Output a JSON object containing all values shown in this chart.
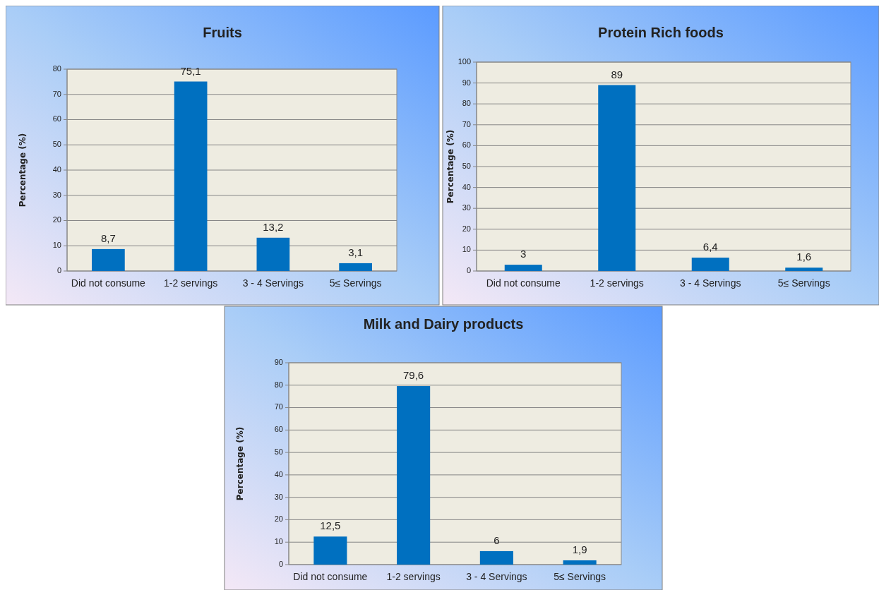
{
  "chart_data": [
    {
      "type": "bar",
      "title": "Fruits",
      "ylabel": "Percentage (%)",
      "categories": [
        "Did not consume",
        "1-2 servings",
        "3 - 4 Servings",
        "5≤ Servings"
      ],
      "values": [
        8.7,
        75.1,
        13.2,
        3.1
      ],
      "value_labels": [
        "8,7",
        "75,1",
        "13,2",
        "3,1"
      ],
      "color": "#0070c0",
      "ylim": [
        0,
        80
      ],
      "yticks": [
        0,
        10,
        20,
        30,
        40,
        50,
        60,
        70,
        80
      ],
      "grid": "y"
    },
    {
      "type": "bar",
      "title": "Protein Rich foods",
      "ylabel": "Percentage (%)",
      "categories": [
        "Did not consume",
        "1-2 servings",
        "3 - 4 Servings",
        "5≤ Servings"
      ],
      "values": [
        3,
        89,
        6.4,
        1.6
      ],
      "value_labels": [
        "3",
        "89",
        "6,4",
        "1,6"
      ],
      "color": "#0070c0",
      "ylim": [
        0,
        100
      ],
      "yticks": [
        0,
        10,
        20,
        30,
        40,
        50,
        60,
        70,
        80,
        90,
        100
      ],
      "grid": "y"
    },
    {
      "type": "bar",
      "title": "Milk and Dairy products",
      "ylabel": "Percentage (%)",
      "categories": [
        "Did not consume",
        "1-2 servings",
        "3 - 4 Servings",
        "5≤ Servings"
      ],
      "values": [
        12.5,
        79.6,
        6,
        1.9
      ],
      "value_labels": [
        "12,5",
        "79,6",
        "6",
        "1,9"
      ],
      "color": "#0070c0",
      "ylim": [
        0,
        90
      ],
      "yticks": [
        0,
        10,
        20,
        30,
        40,
        50,
        60,
        70,
        80,
        90
      ],
      "grid": "y"
    }
  ]
}
